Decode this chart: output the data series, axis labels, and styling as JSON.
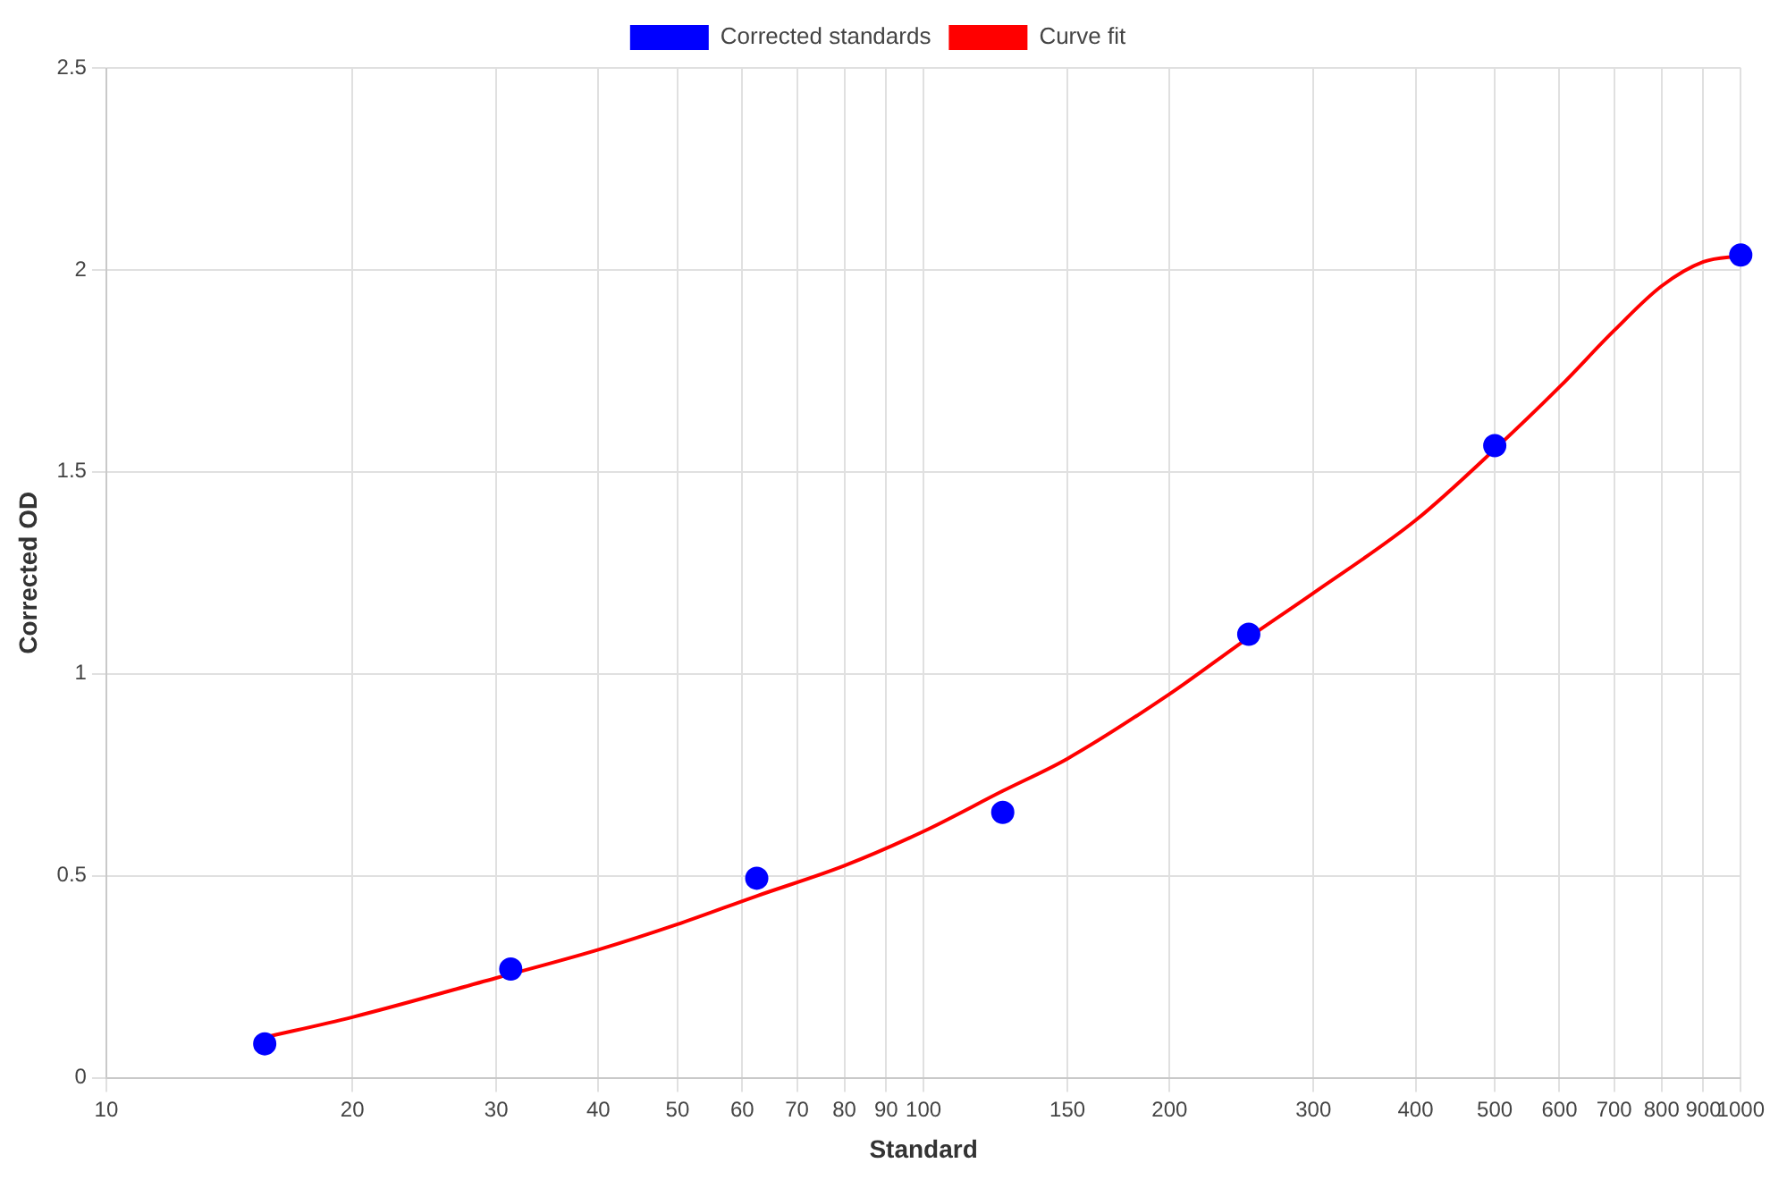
{
  "chart_data": {
    "type": "scatter",
    "xlabel": "Standard",
    "ylabel": "Corrected OD",
    "log": "x",
    "grid": true,
    "legend": "top",
    "xlim": [
      10,
      1000
    ],
    "xticks": [
      10,
      20,
      30,
      40,
      50,
      60,
      70,
      80,
      90,
      100,
      150,
      200,
      300,
      400,
      500,
      600,
      700,
      800,
      900,
      1000
    ],
    "ylim": [
      0,
      2.5
    ],
    "yticks": [
      0,
      0.5,
      1,
      1.5,
      2,
      2.5
    ],
    "series": [
      {
        "name": "Corrected standards",
        "type": "scatter",
        "color": "#0000ff",
        "marker": "circle",
        "x": [
          15.625,
          31.25,
          62.5,
          125,
          250,
          500,
          1000
        ],
        "values": [
          0.084,
          0.269,
          0.494,
          0.657,
          1.098,
          1.565,
          2.037
        ]
      },
      {
        "name": "Curve fit",
        "type": "line",
        "color": "#ff0000",
        "marker": "none",
        "line_style": "solid",
        "x": [
          15.625,
          20,
          30,
          40,
          50,
          62.5,
          80,
          100,
          125,
          150,
          200,
          250,
          300,
          400,
          500,
          600,
          700,
          800,
          900,
          1000
        ],
        "values": [
          0.1,
          0.15,
          0.247,
          0.317,
          0.38,
          0.45,
          0.525,
          0.61,
          0.71,
          0.79,
          0.95,
          1.09,
          1.2,
          1.38,
          1.556,
          1.71,
          1.85,
          1.96,
          2.02,
          2.035
        ]
      }
    ]
  }
}
